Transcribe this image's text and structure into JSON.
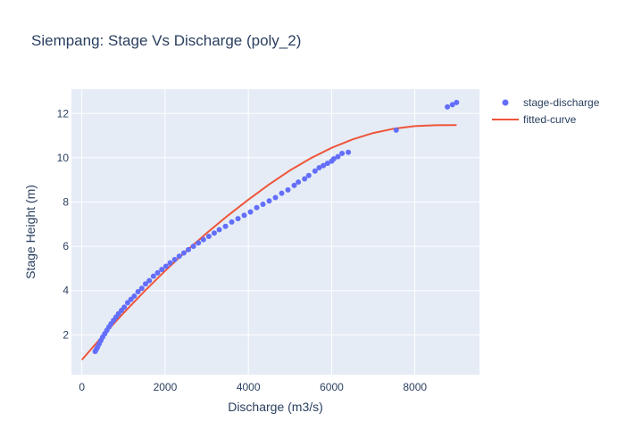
{
  "chart_data": {
    "type": "scatter",
    "title": "Siempang: Stage Vs Discharge (poly_2)",
    "xlabel": "Discharge (m3/s)",
    "ylabel": "Stage Height (m)",
    "xlim": [
      -250,
      9550
    ],
    "ylim": [
      0.2,
      13.1
    ],
    "x_ticks": [
      0,
      2000,
      4000,
      6000,
      8000
    ],
    "x_tick_labels": [
      "0",
      "2000",
      "4000",
      "6000",
      "8000"
    ],
    "y_ticks": [
      2,
      4,
      6,
      8,
      10,
      12
    ],
    "y_tick_labels": [
      "2",
      "4",
      "6",
      "8",
      "10",
      "12"
    ],
    "grid": true,
    "legend_position": "top-right",
    "series": [
      {
        "name": "stage-discharge",
        "mode": "markers",
        "color": "#636efa",
        "x": [
          320,
          350,
          380,
          420,
          460,
          500,
          550,
          600,
          650,
          700,
          760,
          820,
          880,
          950,
          1020,
          1100,
          1180,
          1260,
          1350,
          1440,
          1530,
          1620,
          1720,
          1820,
          1920,
          2020,
          2120,
          2230,
          2340,
          2450,
          2560,
          2680,
          2800,
          2920,
          3050,
          3180,
          3300,
          3450,
          3600,
          3750,
          3900,
          4050,
          4200,
          4350,
          4500,
          4650,
          4800,
          4950,
          5100,
          5200,
          5350,
          5450,
          5600,
          5700,
          5800,
          5900,
          6000,
          6050,
          6150,
          6250,
          6400,
          7550,
          8780,
          8900,
          9000
        ],
        "y": [
          1.25,
          1.35,
          1.45,
          1.6,
          1.75,
          1.9,
          2.05,
          2.2,
          2.35,
          2.5,
          2.65,
          2.8,
          2.95,
          3.1,
          3.25,
          3.45,
          3.6,
          3.75,
          3.95,
          4.1,
          4.3,
          4.45,
          4.65,
          4.8,
          4.95,
          5.1,
          5.25,
          5.4,
          5.55,
          5.7,
          5.85,
          6.0,
          6.15,
          6.3,
          6.45,
          6.6,
          6.75,
          6.9,
          7.1,
          7.25,
          7.4,
          7.55,
          7.75,
          7.9,
          8.05,
          8.2,
          8.4,
          8.55,
          8.75,
          8.9,
          9.05,
          9.2,
          9.4,
          9.55,
          9.65,
          9.75,
          9.85,
          9.95,
          10.05,
          10.2,
          10.25,
          11.25,
          12.3,
          12.4,
          12.5
        ]
      },
      {
        "name": "fitted-curve",
        "mode": "lines",
        "color": "#ef553b",
        "x": [
          0,
          500,
          1000,
          1500,
          2000,
          2500,
          3000,
          3500,
          4000,
          4500,
          5000,
          5500,
          6000,
          6500,
          7000,
          7500,
          8000,
          8500,
          9000
        ],
        "y": [
          0.87,
          1.95,
          2.98,
          3.96,
          4.89,
          5.77,
          6.6,
          7.38,
          8.11,
          8.8,
          9.43,
          9.98,
          10.45,
          10.83,
          11.12,
          11.32,
          11.43,
          11.47,
          11.48
        ]
      }
    ]
  }
}
